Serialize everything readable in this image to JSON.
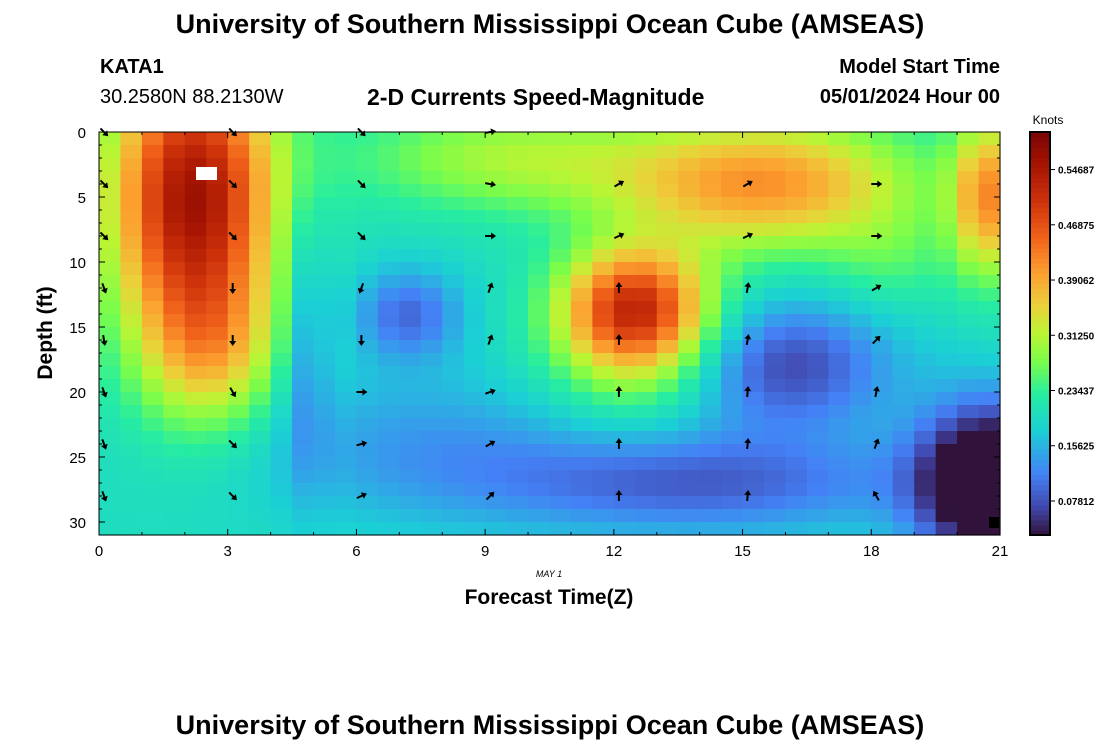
{
  "header": {
    "title": "University of Southern Mississippi Ocean Cube (AMSEAS)",
    "station": "KATA1",
    "coords": "30.2580N  88.2130W",
    "plot_title": "2-D Currents Speed-Magnitude",
    "model_start_label": "Model Start Time",
    "model_start_value": "05/01/2024 Hour 00",
    "footer_title": "University of Southern Mississippi Ocean Cube (AMSEAS)"
  },
  "chart_data": {
    "type": "heatmap",
    "title": "2-D Currents Speed-Magnitude",
    "xlabel": "Forecast Time(Z)",
    "ylabel": "Depth (ft)",
    "date_label": "MAY 1",
    "xlim": [
      0,
      21
    ],
    "ylim": [
      0,
      31
    ],
    "x_ticks": [
      0,
      3,
      6,
      9,
      12,
      15,
      18,
      21
    ],
    "y_ticks": [
      0,
      5,
      10,
      15,
      20,
      25,
      30
    ],
    "colorbar": {
      "label": "Knots",
      "range": [
        0.03,
        0.6
      ],
      "ticks": [
        0.07812,
        0.15625,
        0.23437,
        0.3125,
        0.39062,
        0.46875,
        0.54687
      ],
      "tick_labels": [
        "0.07812",
        "0.15625",
        "0.23437",
        "0.31250",
        "0.39062",
        "0.46875",
        "0.54687"
      ]
    },
    "arrow_times": [
      0,
      3,
      6,
      9,
      12,
      15,
      18
    ],
    "arrow_depths": [
      0,
      4,
      8,
      12,
      16,
      20,
      24,
      28
    ],
    "arrow_directions_deg": [
      [
        135,
        135,
        135,
        80,
        null,
        null,
        null
      ],
      [
        135,
        135,
        135,
        100,
        60,
        60,
        90
      ],
      [
        135,
        135,
        135,
        90,
        65,
        65,
        90
      ],
      [
        160,
        180,
        200,
        20,
        0,
        10,
        60
      ],
      [
        170,
        180,
        180,
        20,
        0,
        10,
        45
      ],
      [
        160,
        150,
        90,
        70,
        0,
        5,
        10
      ],
      [
        160,
        135,
        75,
        60,
        0,
        5,
        20
      ],
      [
        160,
        135,
        65,
        45,
        0,
        5,
        330
      ]
    ]
  }
}
